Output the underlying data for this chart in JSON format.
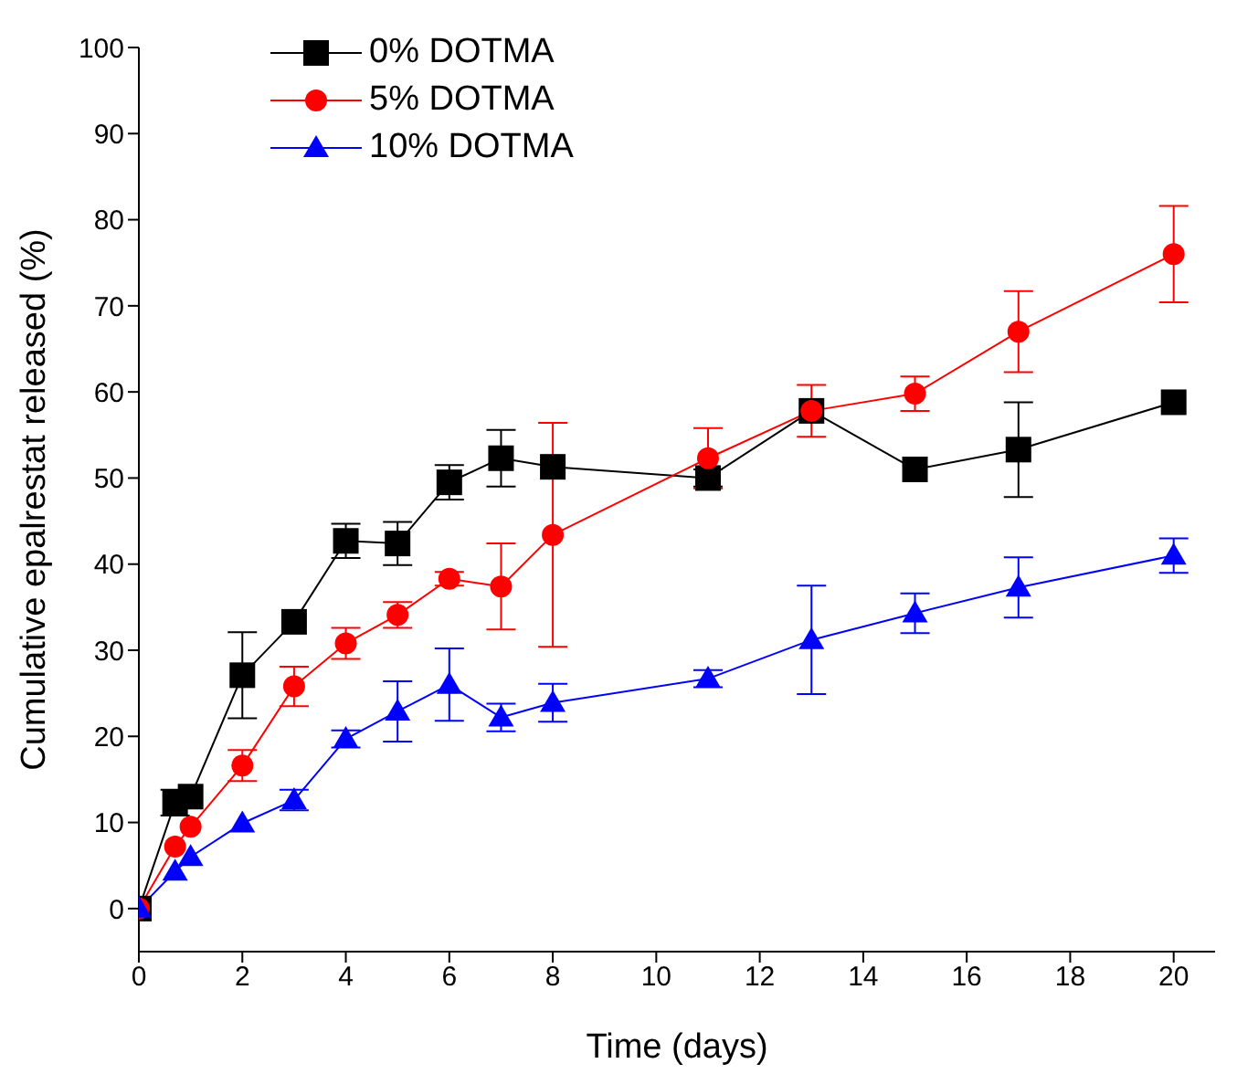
{
  "chart_data": {
    "type": "line",
    "xlabel": "Time (days)",
    "ylabel": "Cumulative epalrestat released (%)",
    "x": [
      0,
      0.7,
      1,
      2,
      3,
      4,
      5,
      6,
      7,
      8,
      11,
      13,
      15,
      17,
      20
    ],
    "xlim": [
      0,
      20.8
    ],
    "xticks": [
      0,
      2,
      4,
      6,
      8,
      10,
      12,
      14,
      16,
      18,
      20
    ],
    "ylim": [
      -5,
      100
    ],
    "yticks": [
      0,
      10,
      20,
      30,
      40,
      50,
      60,
      70,
      80,
      90,
      100
    ],
    "grid": false,
    "legend": "top left",
    "line_style": "solid",
    "series": [
      {
        "name": "0% DOTMA",
        "color": "#000000",
        "marker": "square",
        "values": [
          0,
          12.3,
          13,
          27.1,
          33.3,
          42.7,
          42.4,
          49.5,
          52.3,
          51.3,
          50,
          57.8,
          51,
          53.3,
          58.8
        ],
        "errors": [
          null,
          1.5,
          null,
          5,
          null,
          2,
          2.5,
          2,
          3.3,
          null,
          1,
          null,
          null,
          5.5,
          null
        ]
      },
      {
        "name": "5% DOTMA",
        "color": "#ff0000",
        "marker": "circle",
        "values": [
          0,
          7.2,
          9.5,
          16.6,
          25.8,
          30.8,
          34.1,
          38.3,
          37.4,
          43.4,
          52.3,
          57.8,
          59.8,
          67,
          76
        ],
        "errors": [
          null,
          null,
          null,
          1.8,
          2.3,
          1.8,
          1.5,
          0.8,
          5,
          13,
          3.5,
          3,
          2,
          4.7,
          5.6
        ]
      },
      {
        "name": "10% DOTMA",
        "color": "#0000ff",
        "marker": "triangle",
        "values": [
          0,
          4.3,
          6,
          9.9,
          12.6,
          19.7,
          22.9,
          26,
          22.2,
          23.9,
          26.7,
          31.2,
          34.3,
          37.3,
          41
        ],
        "errors": [
          null,
          null,
          null,
          null,
          1.2,
          1,
          3.5,
          4.2,
          1.6,
          2.2,
          1,
          6.3,
          2.3,
          3.5,
          2
        ]
      }
    ]
  }
}
